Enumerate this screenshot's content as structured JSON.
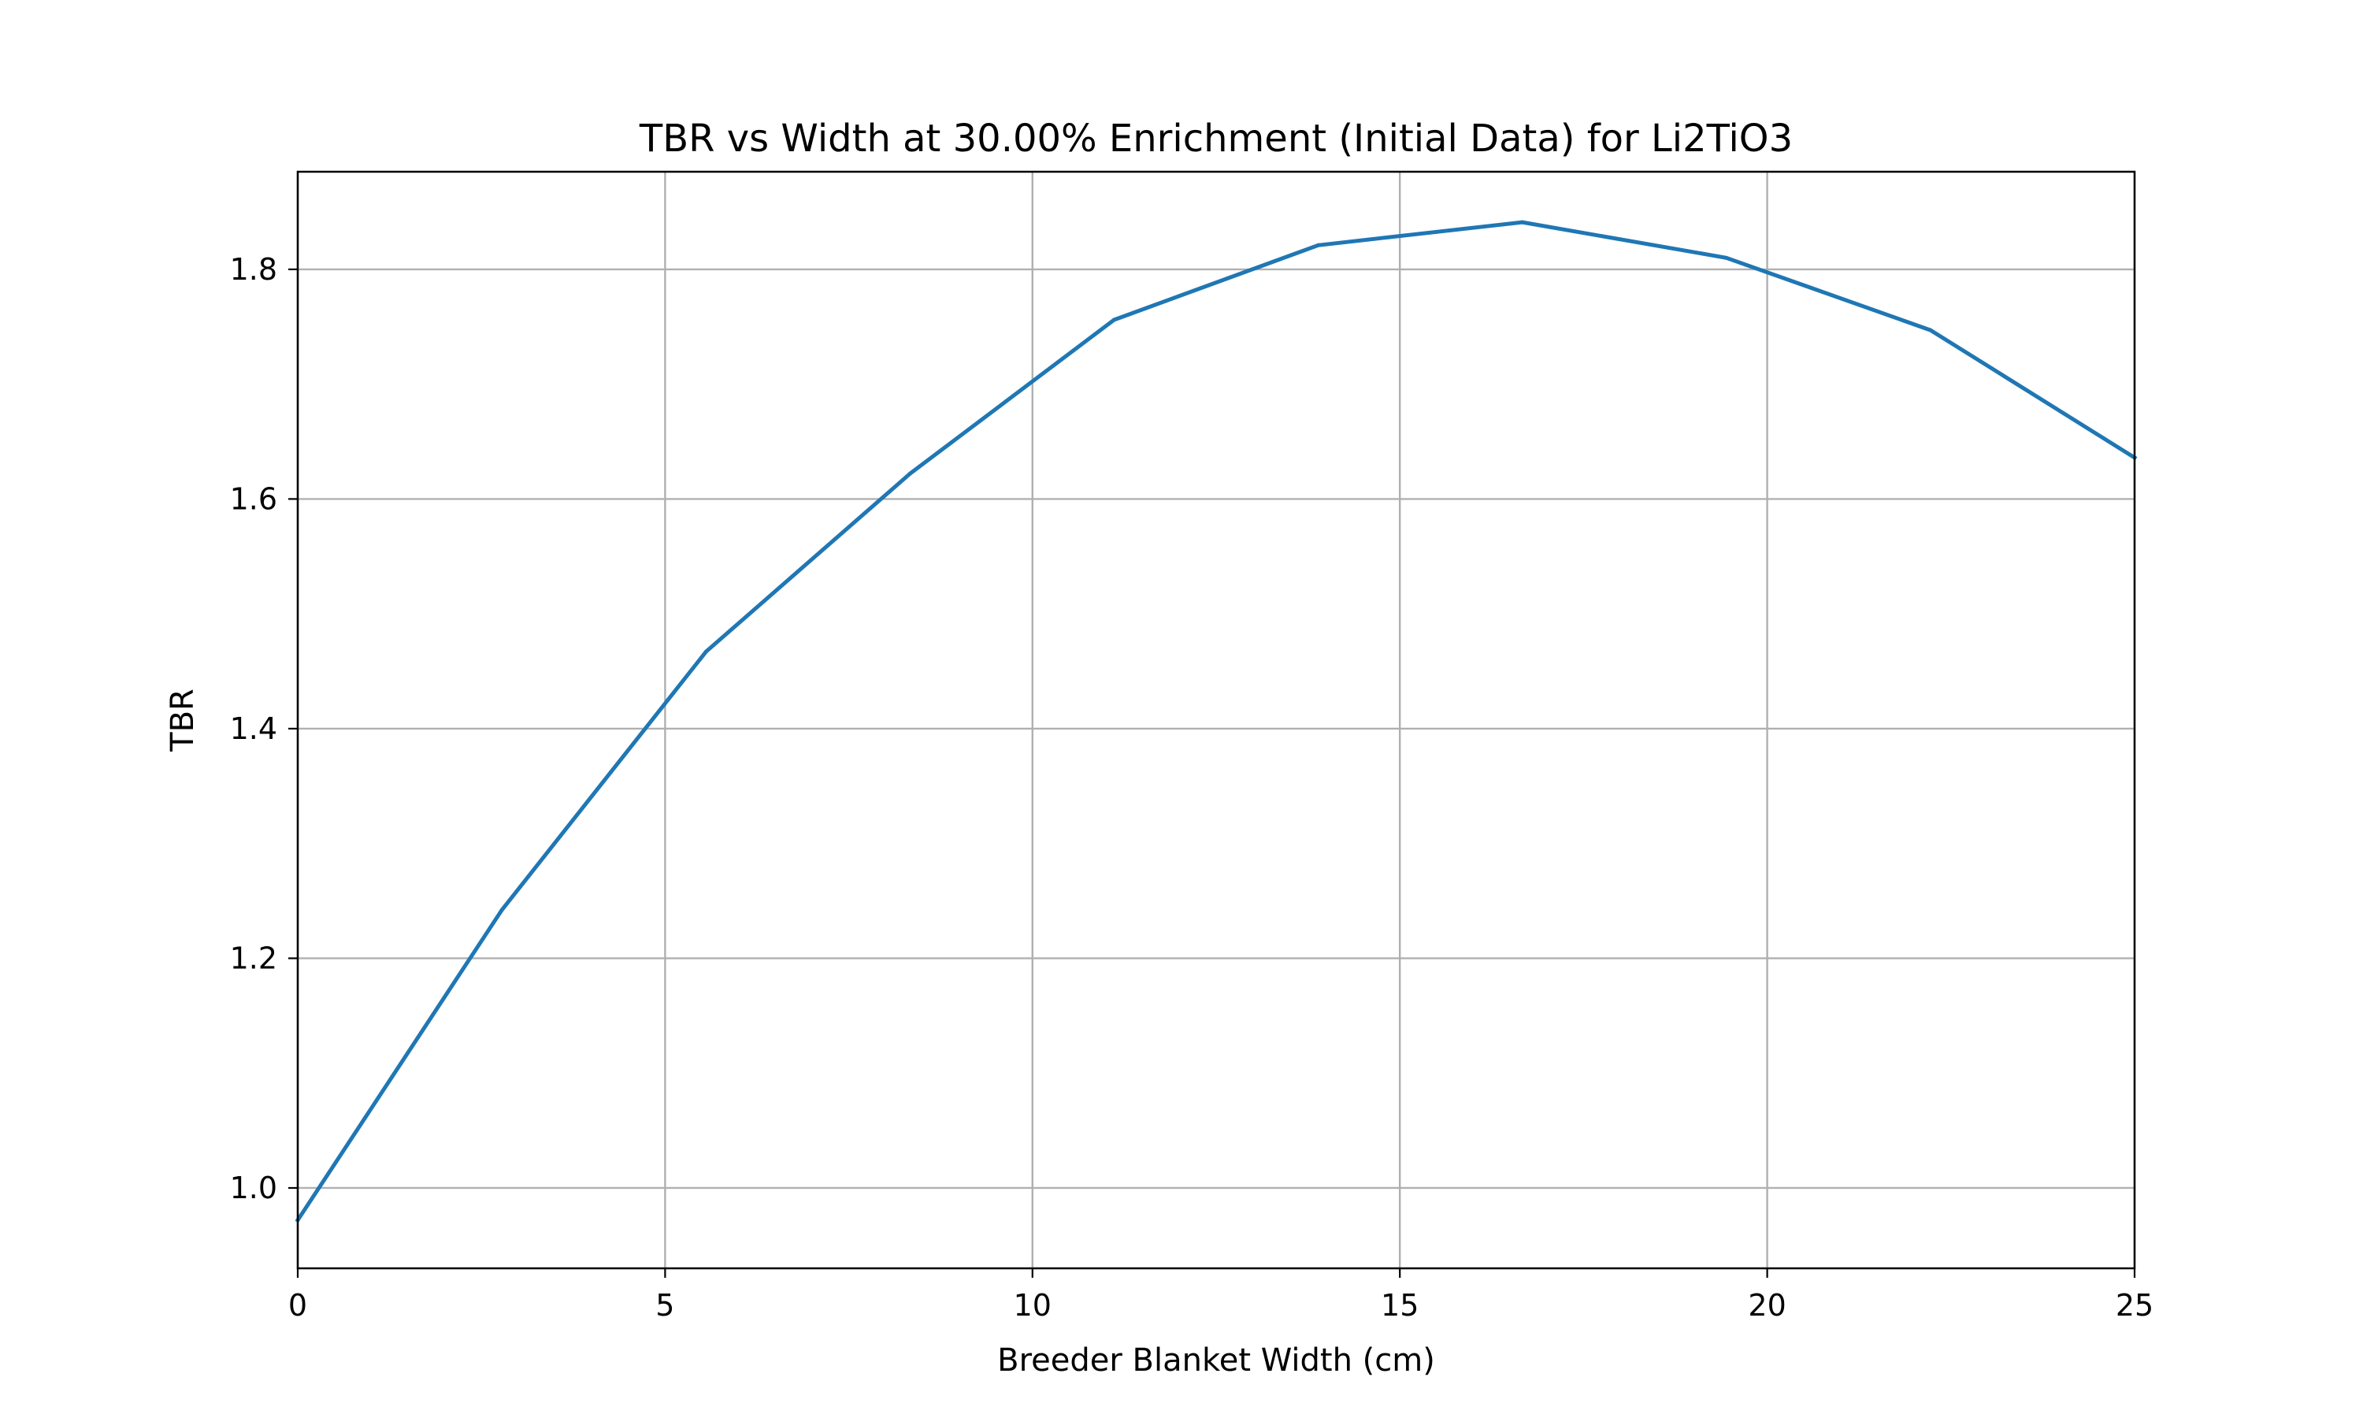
{
  "chart_data": {
    "type": "line",
    "title": "TBR vs Width at 30.00% Enrichment (Initial Data) for Li2TiO3",
    "xlabel": "Breeder Blanket Width (cm)",
    "ylabel": "TBR",
    "xlim": [
      0,
      25
    ],
    "ylim": [
      0.93,
      1.885
    ],
    "x_ticks": [
      0,
      5,
      10,
      15,
      20,
      25
    ],
    "x_tick_labels": [
      "0",
      "5",
      "10",
      "15",
      "20",
      "25"
    ],
    "y_ticks": [
      1.0,
      1.2,
      1.4,
      1.6,
      1.8
    ],
    "y_tick_labels": [
      "1.0",
      "1.2",
      "1.4",
      "1.6",
      "1.8"
    ],
    "grid": true,
    "legend": "none",
    "series": [
      {
        "color": "#1f77b4",
        "x": [
          0,
          2.778,
          5.556,
          8.333,
          11.111,
          13.889,
          16.667,
          19.444,
          22.222,
          25
        ],
        "y": [
          0.972,
          1.242,
          1.467,
          1.622,
          1.756,
          1.821,
          1.841,
          1.81,
          1.747,
          1.636
        ]
      }
    ]
  }
}
